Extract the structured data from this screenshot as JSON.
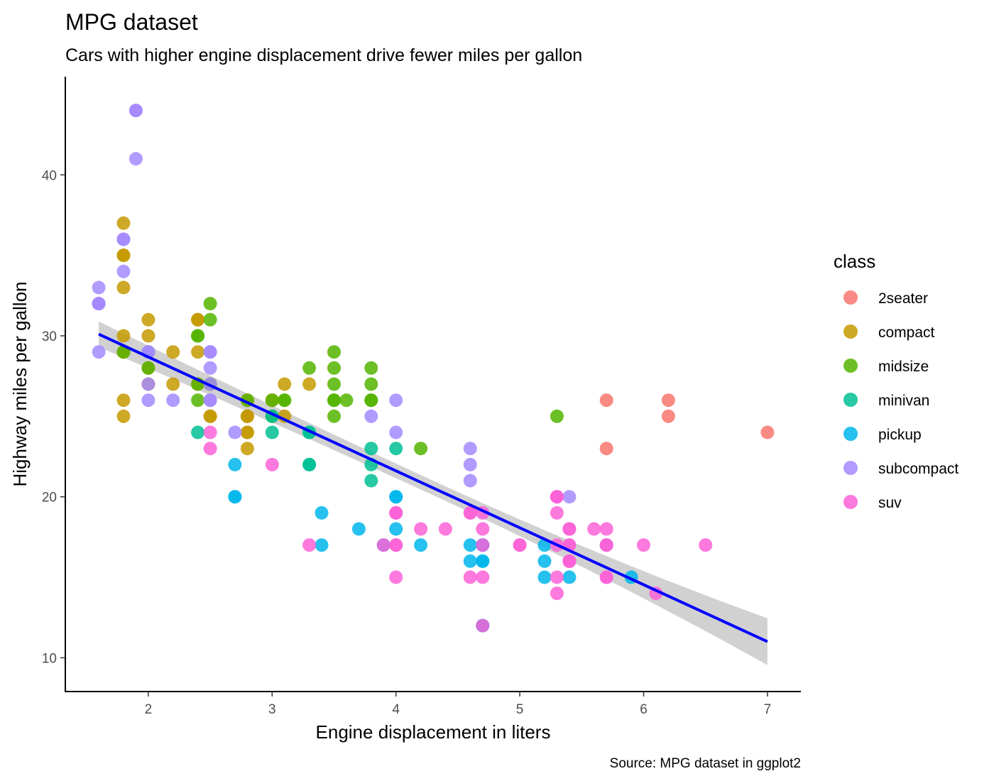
{
  "chart_data": {
    "type": "scatter",
    "title": "MPG dataset",
    "subtitle": "Cars with higher engine displacement drive fewer miles per gallon",
    "xlabel": "Engine displacement in liters",
    "ylabel": "Highway miles per gallon",
    "caption": "Source: MPG dataset in ggplot2",
    "xlim": [
      1.33,
      7.27
    ],
    "ylim": [
      7.9,
      46.1
    ],
    "xticks": [
      2,
      3,
      4,
      5,
      6,
      7
    ],
    "yticks": [
      10,
      20,
      30,
      40
    ],
    "grid": false,
    "legend": {
      "title": "class",
      "position": "right",
      "entries": [
        {
          "name": "2seater",
          "color": "#F8766D"
        },
        {
          "name": "compact",
          "color": "#C49A00"
        },
        {
          "name": "midsize",
          "color": "#53B400"
        },
        {
          "name": "minivan",
          "color": "#00C094"
        },
        {
          "name": "pickup",
          "color": "#00B6EB"
        },
        {
          "name": "subcompact",
          "color": "#A58AFF"
        },
        {
          "name": "suv",
          "color": "#FB61D7"
        }
      ]
    },
    "series": [
      {
        "name": "2seater",
        "color": "#F8766D",
        "points": [
          [
            5.7,
            26
          ],
          [
            5.7,
            23
          ],
          [
            6.2,
            26
          ],
          [
            6.2,
            25
          ],
          [
            7.0,
            24
          ]
        ]
      },
      {
        "name": "compact",
        "color": "#C49A00",
        "points": [
          [
            1.8,
            29
          ],
          [
            1.8,
            29
          ],
          [
            2.0,
            31
          ],
          [
            2.0,
            30
          ],
          [
            2.8,
            26
          ],
          [
            2.8,
            26
          ],
          [
            3.1,
            27
          ],
          [
            1.8,
            26
          ],
          [
            1.8,
            25
          ],
          [
            2.0,
            28
          ],
          [
            2.0,
            27
          ],
          [
            2.8,
            25
          ],
          [
            2.8,
            25
          ],
          [
            3.1,
            25
          ],
          [
            2.2,
            27
          ],
          [
            2.2,
            29
          ],
          [
            2.4,
            31
          ],
          [
            2.4,
            31
          ],
          [
            3.0,
            26
          ],
          [
            3.0,
            26
          ],
          [
            3.3,
            27
          ],
          [
            1.8,
            37
          ],
          [
            1.8,
            35
          ],
          [
            1.8,
            35
          ],
          [
            1.8,
            33
          ],
          [
            1.8,
            30
          ],
          [
            2.5,
            25
          ],
          [
            2.5,
            27
          ],
          [
            2.4,
            29
          ],
          [
            2.4,
            27
          ],
          [
            2.5,
            25
          ],
          [
            2.8,
            24
          ],
          [
            2.8,
            23
          ],
          [
            2.8,
            24
          ],
          [
            2.8,
            25
          ]
        ]
      },
      {
        "name": "midsize",
        "color": "#53B400",
        "points": [
          [
            2.8,
            26
          ],
          [
            3.1,
            26
          ],
          [
            4.2,
            23
          ],
          [
            3.8,
            26
          ],
          [
            3.8,
            27
          ],
          [
            3.8,
            28
          ],
          [
            2.4,
            30
          ],
          [
            2.4,
            26
          ],
          [
            3.3,
            28
          ],
          [
            3.5,
            26
          ],
          [
            3.6,
            26
          ],
          [
            3.5,
            26
          ],
          [
            3.5,
            29
          ],
          [
            3.5,
            28
          ],
          [
            3.5,
            27
          ],
          [
            2.5,
            31
          ],
          [
            2.5,
            32
          ],
          [
            3.0,
            26
          ],
          [
            3.5,
            25
          ],
          [
            3.0,
            25
          ],
          [
            1.8,
            29
          ],
          [
            2.0,
            29
          ],
          [
            2.0,
            28
          ],
          [
            2.4,
            30
          ],
          [
            2.4,
            27
          ],
          [
            5.3,
            25
          ],
          [
            3.1,
            26
          ],
          [
            3.8,
            26
          ],
          [
            2.5,
            27
          ]
        ]
      },
      {
        "name": "minivan",
        "color": "#00C094",
        "points": [
          [
            2.4,
            24
          ],
          [
            3.0,
            24
          ],
          [
            3.3,
            22
          ],
          [
            3.3,
            22
          ],
          [
            3.3,
            24
          ],
          [
            3.3,
            24
          ],
          [
            3.8,
            22
          ],
          [
            3.8,
            21
          ],
          [
            3.8,
            23
          ],
          [
            4.0,
            23
          ],
          [
            3.0,
            25
          ]
        ]
      },
      {
        "name": "pickup",
        "color": "#00B6EB",
        "points": [
          [
            3.7,
            18
          ],
          [
            3.9,
            17
          ],
          [
            4.7,
            17
          ],
          [
            4.7,
            16
          ],
          [
            4.7,
            17
          ],
          [
            4.7,
            12
          ],
          [
            4.7,
            12
          ],
          [
            5.2,
            16
          ],
          [
            5.2,
            15
          ],
          [
            5.7,
            17
          ],
          [
            5.9,
            15
          ],
          [
            4.0,
            20
          ],
          [
            4.2,
            17
          ],
          [
            4.6,
            17
          ],
          [
            4.6,
            16
          ],
          [
            5.4,
            15
          ],
          [
            4.7,
            16
          ],
          [
            5.2,
            17
          ],
          [
            2.7,
            22
          ],
          [
            2.7,
            20
          ],
          [
            2.7,
            20
          ],
          [
            3.4,
            19
          ],
          [
            3.4,
            17
          ],
          [
            4.0,
            20
          ],
          [
            4.0,
            18
          ]
        ]
      },
      {
        "name": "subcompact",
        "color": "#A58AFF",
        "points": [
          [
            3.8,
            25
          ],
          [
            4.0,
            26
          ],
          [
            4.0,
            24
          ],
          [
            4.6,
            21
          ],
          [
            4.6,
            22
          ],
          [
            4.6,
            23
          ],
          [
            5.4,
            20
          ],
          [
            1.6,
            33
          ],
          [
            1.6,
            32
          ],
          [
            1.6,
            32
          ],
          [
            1.6,
            29
          ],
          [
            1.6,
            32
          ],
          [
            1.8,
            34
          ],
          [
            1.8,
            36
          ],
          [
            1.8,
            36
          ],
          [
            2.0,
            29
          ],
          [
            2.0,
            26
          ],
          [
            2.0,
            27
          ],
          [
            2.0,
            29
          ],
          [
            1.9,
            44
          ],
          [
            1.9,
            41
          ],
          [
            1.9,
            44
          ],
          [
            2.2,
            26
          ],
          [
            2.5,
            26
          ],
          [
            2.5,
            29
          ],
          [
            2.5,
            28
          ],
          [
            2.5,
            29
          ],
          [
            2.7,
            24
          ],
          [
            2.5,
            26
          ],
          [
            2.5,
            27
          ]
        ]
      },
      {
        "name": "suv",
        "color": "#FB61D7",
        "points": [
          [
            5.3,
            20
          ],
          [
            5.3,
            15
          ],
          [
            5.3,
            20
          ],
          [
            5.7,
            17
          ],
          [
            6.0,
            17
          ],
          [
            5.7,
            17
          ],
          [
            5.3,
            19
          ],
          [
            5.3,
            20
          ],
          [
            4.0,
            17
          ],
          [
            4.0,
            19
          ],
          [
            4.6,
            19
          ],
          [
            5.0,
            17
          ],
          [
            5.4,
            17
          ],
          [
            5.4,
            18
          ],
          [
            5.4,
            16
          ],
          [
            3.3,
            17
          ],
          [
            4.7,
            17
          ],
          [
            4.7,
            19
          ],
          [
            4.7,
            15
          ],
          [
            4.7,
            12
          ],
          [
            5.7,
            18
          ],
          [
            6.1,
            14
          ],
          [
            4.6,
            15
          ],
          [
            5.4,
            16
          ],
          [
            5.4,
            17
          ],
          [
            4.0,
            19
          ],
          [
            4.2,
            18
          ],
          [
            4.4,
            18
          ],
          [
            4.6,
            19
          ],
          [
            5.4,
            18
          ],
          [
            5.3,
            14
          ],
          [
            4.0,
            15
          ],
          [
            4.0,
            17
          ],
          [
            4.0,
            19
          ],
          [
            5.0,
            17
          ],
          [
            6.5,
            17
          ],
          [
            5.6,
            18
          ],
          [
            5.7,
            15
          ],
          [
            3.9,
            17
          ],
          [
            4.7,
            18
          ],
          [
            2.5,
            24
          ],
          [
            2.5,
            23
          ],
          [
            3.0,
            22
          ],
          [
            5.3,
            17
          ],
          [
            5.4,
            16
          ],
          [
            5.7,
            15
          ]
        ]
      }
    ],
    "trend_line": {
      "method": "lm",
      "color": "#0000FF",
      "band_color": "#999999",
      "x": [
        1.6,
        7.0
      ],
      "y": [
        30.1,
        11.0
      ],
      "band_half_width": [
        0.8,
        1.45
      ]
    }
  }
}
